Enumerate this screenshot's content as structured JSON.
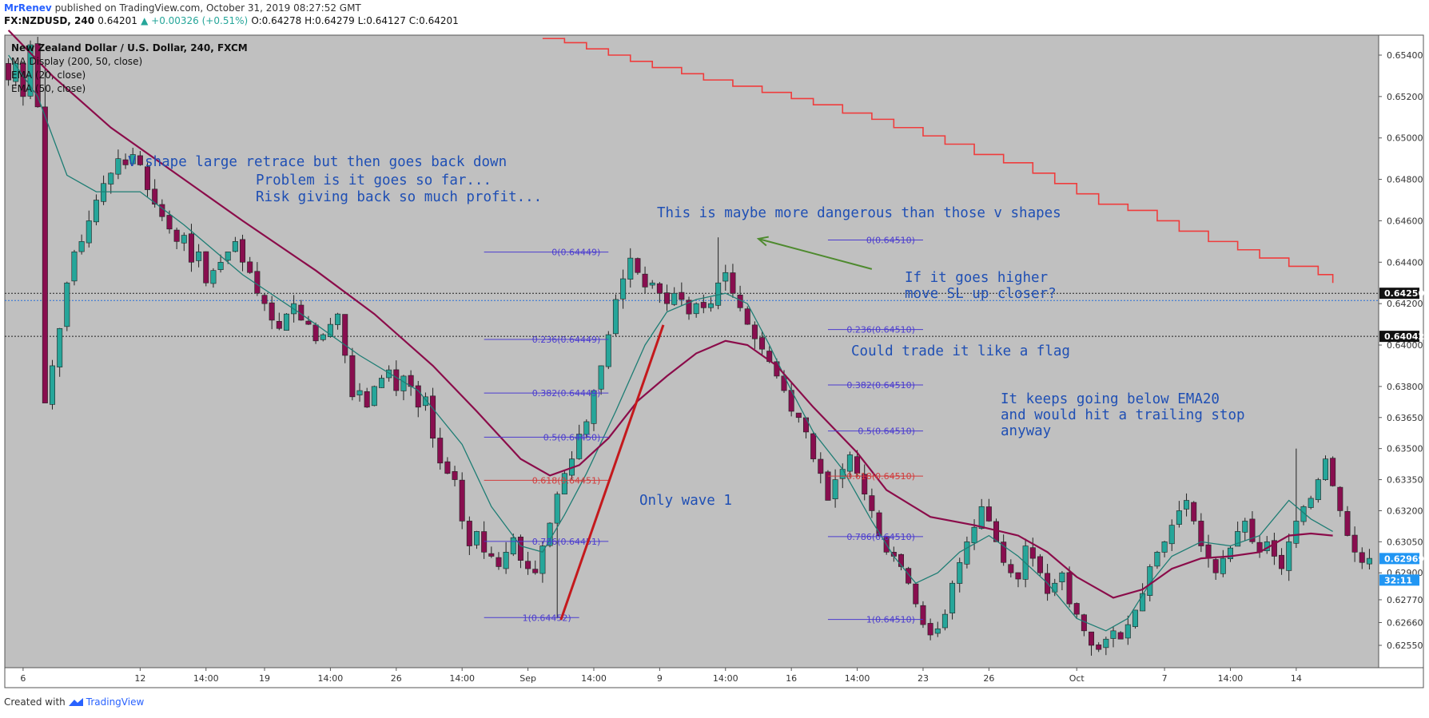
{
  "header": {
    "author": "MrRenev",
    "published": " published on TradingView.com, October 31, 2019 08:27:52 GMT",
    "symbol": "FX:NZDUSD, 240",
    "last": "0.64201",
    "change": "▲ +0.00326 (+0.51%)",
    "ohlc": "O:0.64278 H:0.64279 L:0.64127 C:0.64201"
  },
  "footer": {
    "created": "Created with",
    "brand": "TradingView"
  },
  "legend": {
    "title": "New Zealand Dollar / U.S. Dollar, 240, FXCM",
    "line1": "MA Display (200, 50, close)",
    "line2": "EMA (20, close)",
    "line3": "EMA (50, close)"
  },
  "notes": {
    "n1": "V shape large retrace but then goes back down",
    "n2": "Problem is it goes so far...",
    "n3": "Risk giving back so much profit...",
    "n4": "This is maybe more dangerous than those v shapes",
    "n5": "If it goes higher",
    "n6": "move SL up closer?",
    "n7": "Could trade it like a flag",
    "n8": "It keeps going below EMA20",
    "n9": "and would hit a trailing stop",
    "n10": "anyway",
    "n11": "Only wave 1"
  },
  "colors": {
    "background": "#c0c0c0",
    "bull": "#26a69a",
    "bear": "#880e4f",
    "ema20": "#1e7d74",
    "ema50": "#8b0c4a",
    "ma200": "#ef3c3c",
    "fib": "#4b3ccf",
    "fib618": "#d23c3c",
    "note": "#1f4fb4",
    "arrow": "#4e8a2e",
    "wave": "#c4191c"
  },
  "chart_data": {
    "type": "candlestick",
    "title": "New Zealand Dollar / U.S. Dollar, 240, FXCM",
    "yaxis": {
      "ticks": [
        "0.65400",
        "0.65200",
        "0.65000",
        "0.64800",
        "0.64600",
        "0.64400",
        "0.64200",
        "0.64000",
        "0.63800",
        "0.63650",
        "0.63500",
        "0.63350",
        "0.63200",
        "0.63050",
        "0.62900",
        "0.62770",
        "0.62660",
        "0.62550"
      ],
      "labels": [
        {
          "text": "0.64250",
          "value": 0.6425,
          "style": "black"
        },
        {
          "text": "0.64042",
          "value": 0.64042,
          "style": "black"
        },
        {
          "text": "0.62969",
          "value": 0.62969,
          "style": "blue"
        },
        {
          "text": "32:11",
          "value": 0.62865,
          "style": "blue"
        }
      ]
    },
    "xaxis": {
      "ticks": [
        {
          "i": 2,
          "label": "6"
        },
        {
          "i": 18,
          "label": "12"
        },
        {
          "i": 27,
          "label": "14:00"
        },
        {
          "i": 35,
          "label": "19"
        },
        {
          "i": 44,
          "label": "14:00"
        },
        {
          "i": 53,
          "label": "26"
        },
        {
          "i": 62,
          "label": "14:00"
        },
        {
          "i": 71,
          "label": "Sep"
        },
        {
          "i": 80,
          "label": "14:00"
        },
        {
          "i": 89,
          "label": "9"
        },
        {
          "i": 98,
          "label": "14:00"
        },
        {
          "i": 107,
          "label": "16"
        },
        {
          "i": 116,
          "label": "14:00"
        },
        {
          "i": 125,
          "label": "23"
        },
        {
          "i": 134,
          "label": "26"
        },
        {
          "i": 146,
          "label": "Oct"
        },
        {
          "i": 158,
          "label": "7"
        },
        {
          "i": 167,
          "label": "14:00"
        },
        {
          "i": 176,
          "label": "14"
        }
      ]
    },
    "hlines": [
      {
        "value": 0.6425,
        "style": "dotted-black"
      },
      {
        "value": 0.64215,
        "style": "dotted-blue"
      },
      {
        "value": 0.64042,
        "style": "dotted-black"
      }
    ],
    "closes": [
      0.6528,
      0.6536,
      0.652,
      0.6545,
      0.6515,
      0.6372,
      0.639,
      0.6408,
      0.643,
      0.6445,
      0.645,
      0.646,
      0.647,
      0.6478,
      0.6483,
      0.649,
      0.6487,
      0.6492,
      0.6487,
      0.6475,
      0.6468,
      0.6462,
      0.6456,
      0.645,
      0.6453,
      0.644,
      0.6445,
      0.643,
      0.6436,
      0.644,
      0.6445,
      0.645,
      0.644,
      0.6435,
      0.6425,
      0.642,
      0.6412,
      0.6408,
      0.6415,
      0.642,
      0.6412,
      0.641,
      0.6402,
      0.6405,
      0.641,
      0.6415,
      0.6395,
      0.6375,
      0.6378,
      0.637,
      0.638,
      0.6384,
      0.6388,
      0.6378,
      0.6385,
      0.638,
      0.637,
      0.6375,
      0.6355,
      0.6343,
      0.6338,
      0.6335,
      0.6315,
      0.6303,
      0.631,
      0.63,
      0.6298,
      0.6293,
      0.63,
      0.6307,
      0.6296,
      0.6292,
      0.629,
      0.6303,
      0.6314,
      0.6328,
      0.6338,
      0.6345,
      0.6357,
      0.6363,
      0.6378,
      0.639,
      0.6405,
      0.6422,
      0.6432,
      0.6442,
      0.6435,
      0.6428,
      0.643,
      0.6425,
      0.642,
      0.6425,
      0.6422,
      0.6415,
      0.642,
      0.6418,
      0.642,
      0.643,
      0.6435,
      0.6425,
      0.6418,
      0.641,
      0.6403,
      0.6398,
      0.6392,
      0.6385,
      0.6378,
      0.6368,
      0.6365,
      0.6358,
      0.6345,
      0.6338,
      0.6325,
      0.6335,
      0.634,
      0.6347,
      0.6338,
      0.6328,
      0.632,
      0.6308,
      0.63,
      0.6298,
      0.6293,
      0.6285,
      0.6275,
      0.6265,
      0.626,
      0.6263,
      0.627,
      0.6285,
      0.6295,
      0.6305,
      0.6312,
      0.6322,
      0.6315,
      0.6305,
      0.6295,
      0.629,
      0.6287,
      0.6303,
      0.6297,
      0.629,
      0.628,
      0.6285,
      0.629,
      0.6275,
      0.627,
      0.6262,
      0.6255,
      0.6253,
      0.6258,
      0.6262,
      0.6258,
      0.6265,
      0.6272,
      0.628,
      0.6293,
      0.63,
      0.6305,
      0.6313,
      0.632,
      0.6325,
      0.6315,
      0.6303,
      0.6297,
      0.629,
      0.6297,
      0.6302,
      0.631,
      0.6315,
      0.6305,
      0.63,
      0.6305,
      0.6298,
      0.6292,
      0.6305,
      0.6315,
      0.6322,
      0.6326,
      0.6335,
      0.6345,
      0.6332,
      0.632,
      0.6308,
      0.63,
      0.6295,
      0.6297
    ],
    "ema20": [
      [
        0,
        0.654
      ],
      [
        4,
        0.652
      ],
      [
        8,
        0.6482
      ],
      [
        12,
        0.6474
      ],
      [
        18,
        0.6474
      ],
      [
        24,
        0.6458
      ],
      [
        32,
        0.6434
      ],
      [
        40,
        0.6415
      ],
      [
        48,
        0.6395
      ],
      [
        56,
        0.6378
      ],
      [
        62,
        0.6352
      ],
      [
        66,
        0.6322
      ],
      [
        70,
        0.6303
      ],
      [
        73,
        0.63
      ],
      [
        76,
        0.6318
      ],
      [
        79,
        0.6338
      ],
      [
        83,
        0.6368
      ],
      [
        87,
        0.64
      ],
      [
        90,
        0.6416
      ],
      [
        94,
        0.6422
      ],
      [
        98,
        0.6425
      ],
      [
        101,
        0.642
      ],
      [
        104,
        0.64
      ],
      [
        107,
        0.6378
      ],
      [
        110,
        0.6358
      ],
      [
        114,
        0.634
      ],
      [
        118,
        0.6315
      ],
      [
        121,
        0.6298
      ],
      [
        124,
        0.6285
      ],
      [
        127,
        0.629
      ],
      [
        130,
        0.63
      ],
      [
        134,
        0.6308
      ],
      [
        138,
        0.6298
      ],
      [
        142,
        0.6285
      ],
      [
        146,
        0.6268
      ],
      [
        150,
        0.6262
      ],
      [
        153,
        0.6268
      ],
      [
        156,
        0.6285
      ],
      [
        159,
        0.6298
      ],
      [
        163,
        0.6305
      ],
      [
        167,
        0.6303
      ],
      [
        171,
        0.6308
      ],
      [
        175,
        0.6325
      ],
      [
        178,
        0.6316
      ],
      [
        181,
        0.631
      ]
    ],
    "ema50": [
      [
        0,
        0.6552
      ],
      [
        6,
        0.653
      ],
      [
        14,
        0.6505
      ],
      [
        22,
        0.6485
      ],
      [
        32,
        0.646
      ],
      [
        42,
        0.6436
      ],
      [
        50,
        0.6415
      ],
      [
        58,
        0.639
      ],
      [
        64,
        0.6368
      ],
      [
        70,
        0.6345
      ],
      [
        74,
        0.6337
      ],
      [
        78,
        0.6342
      ],
      [
        82,
        0.6355
      ],
      [
        86,
        0.6373
      ],
      [
        90,
        0.6385
      ],
      [
        94,
        0.6396
      ],
      [
        98,
        0.6402
      ],
      [
        101,
        0.64
      ],
      [
        105,
        0.639
      ],
      [
        110,
        0.637
      ],
      [
        116,
        0.6348
      ],
      [
        120,
        0.633
      ],
      [
        126,
        0.6317
      ],
      [
        132,
        0.6313
      ],
      [
        138,
        0.6308
      ],
      [
        142,
        0.63
      ],
      [
        146,
        0.6288
      ],
      [
        151,
        0.6278
      ],
      [
        155,
        0.6282
      ],
      [
        159,
        0.6292
      ],
      [
        163,
        0.6297
      ],
      [
        167,
        0.6298
      ],
      [
        171,
        0.63
      ],
      [
        175,
        0.6308
      ],
      [
        178,
        0.6309
      ],
      [
        181,
        0.6308
      ]
    ],
    "ma200_steps": [
      [
        73,
        0.6548
      ],
      [
        76,
        0.6546
      ],
      [
        79,
        0.6543
      ],
      [
        82,
        0.654
      ],
      [
        85,
        0.6537
      ],
      [
        88,
        0.6534
      ],
      [
        92,
        0.6531
      ],
      [
        95,
        0.6528
      ],
      [
        99,
        0.6525
      ],
      [
        103,
        0.6522
      ],
      [
        107,
        0.6519
      ],
      [
        110,
        0.6516
      ],
      [
        114,
        0.6512
      ],
      [
        118,
        0.6509
      ],
      [
        121,
        0.6505
      ],
      [
        125,
        0.6501
      ],
      [
        128,
        0.6497
      ],
      [
        132,
        0.6492
      ],
      [
        136,
        0.6488
      ],
      [
        140,
        0.6483
      ],
      [
        143,
        0.6478
      ],
      [
        146,
        0.6473
      ],
      [
        149,
        0.6468
      ],
      [
        153,
        0.6465
      ],
      [
        157,
        0.646
      ],
      [
        160,
        0.6455
      ],
      [
        164,
        0.645
      ],
      [
        168,
        0.6446
      ],
      [
        171,
        0.6442
      ],
      [
        175,
        0.6438
      ],
      [
        179,
        0.6434
      ],
      [
        181,
        0.643
      ]
    ],
    "fib_sets": [
      {
        "x1": 65,
        "levels": [
          {
            "x2": 82,
            "value": 0.64449,
            "label": "0(0.64449)"
          },
          {
            "x2": 82,
            "value": 0.64027,
            "label": "0.236(0.64449)"
          },
          {
            "x2": 82,
            "value": 0.63768,
            "label": "0.382(0.64449)"
          },
          {
            "x2": 82,
            "value": 0.63555,
            "label": "0.5(0.64450)"
          },
          {
            "x2": 82,
            "value": 0.63347,
            "label": "0.618(0.64451)",
            "red": true
          },
          {
            "x2": 82,
            "value": 0.63052,
            "label": "0.786(0.64451)"
          },
          {
            "x2": 78,
            "value": 0.62684,
            "label": "1(0.64452)"
          }
        ]
      },
      {
        "x1": 112,
        "levels": [
          {
            "x2": 125,
            "value": 0.64507,
            "label": "0(0.64510)"
          },
          {
            "x2": 125,
            "value": 0.64075,
            "label": "0.236(0.64510)"
          },
          {
            "x2": 125,
            "value": 0.63807,
            "label": "0.382(0.64510)"
          },
          {
            "x2": 125,
            "value": 0.63585,
            "label": "0.5(0.64510)"
          },
          {
            "x2": 125,
            "value": 0.63367,
            "label": "0.618(0.64510)",
            "red": true
          },
          {
            "x2": 125,
            "value": 0.63075,
            "label": "0.786(0.64510)"
          },
          {
            "x2": 125,
            "value": 0.62675,
            "label": "1(0.64510)"
          }
        ]
      }
    ],
    "wave_line": [
      [
        75.5,
        0.62673
      ],
      [
        89.5,
        0.64097
      ]
    ],
    "arrow": {
      "from": [
        118,
        0.64367
      ],
      "to": [
        102.5,
        0.64513
      ]
    }
  }
}
